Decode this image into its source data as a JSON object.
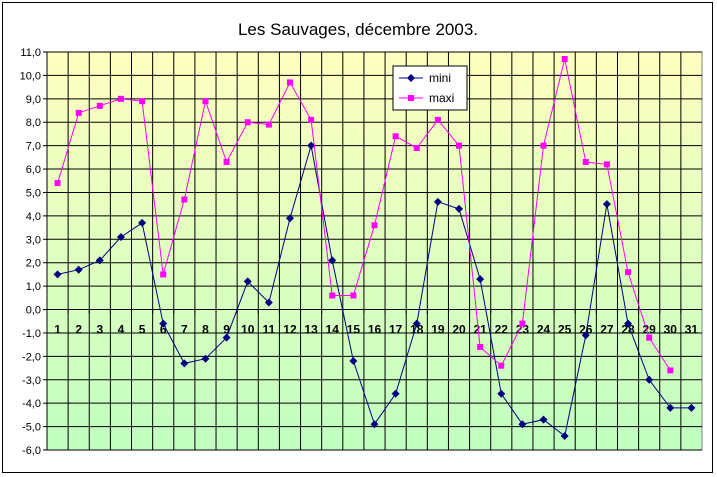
{
  "chart_data": {
    "type": "line",
    "title": "Les Sauvages, décembre 2003.",
    "xlabel": "",
    "ylabel": "",
    "ylim": [
      -6,
      11
    ],
    "ytick_labels": [
      "11,0",
      "10,0",
      "9,0",
      "8,0",
      "7,0",
      "6,0",
      "5,0",
      "4,0",
      "3,0",
      "2,0",
      "1,0",
      "0,0",
      "-1,0",
      "-2,0",
      "-3,0",
      "-4,0",
      "-5,0",
      "-6,0"
    ],
    "categories": [
      "1",
      "2",
      "3",
      "4",
      "5",
      "6",
      "7",
      "8",
      "9",
      "10",
      "11",
      "12",
      "13",
      "14",
      "15",
      "16",
      "17",
      "18",
      "19",
      "20",
      "21",
      "22",
      "23",
      "24",
      "25",
      "26",
      "27",
      "28",
      "29",
      "30",
      "31"
    ],
    "grid": true,
    "legend_position": "top-center",
    "series": [
      {
        "name": "mini",
        "color": "#000080",
        "marker": "diamond",
        "values": [
          1.5,
          1.7,
          2.1,
          3.1,
          3.7,
          -0.6,
          -2.3,
          -2.1,
          -1.2,
          1.2,
          0.3,
          3.9,
          7.0,
          2.1,
          -2.2,
          -4.9,
          -3.6,
          -0.6,
          4.6,
          4.3,
          1.3,
          -3.6,
          -4.9,
          -4.7,
          -5.4,
          -1.1,
          4.5,
          -0.6,
          -3.0,
          -4.2,
          -4.2
        ]
      },
      {
        "name": "maxi",
        "color": "#FF00FF",
        "marker": "square",
        "values": [
          5.4,
          8.4,
          8.7,
          9.0,
          8.9,
          1.5,
          4.7,
          8.9,
          6.3,
          8.0,
          7.9,
          9.7,
          8.1,
          0.6,
          0.6,
          3.6,
          7.4,
          6.9,
          8.1,
          7.0,
          -1.6,
          -2.4,
          -0.6,
          7.0,
          10.7,
          6.3,
          6.2,
          1.6,
          -1.2,
          -2.6,
          null
        ]
      }
    ],
    "background_gradient": [
      "#FFFFC0",
      "#C0FFC0"
    ]
  }
}
